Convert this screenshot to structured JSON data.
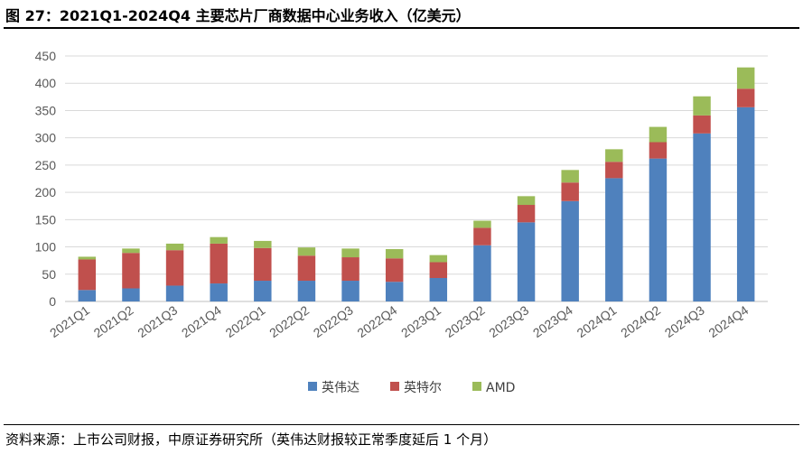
{
  "title": "图 27：2021Q1-2024Q4 主要芯片厂商数据中心业务收入（亿美元）",
  "source": "资料来源：上市公司财报，中原证券研究所（英伟达财报较正常季度延后 1 个月）",
  "colors": {
    "nvidia": "#4F81BD",
    "intel": "#C0504D",
    "amd": "#9BBB59",
    "grid": "#D9D9D9",
    "axis": "#BFBFBF"
  },
  "chart_data": {
    "type": "bar",
    "stacked": true,
    "title": "图 27：2021Q1-2024Q4 主要芯片厂商数据中心业务收入（亿美元）",
    "xlabel": "",
    "ylabel": "",
    "ylim": [
      0,
      450
    ],
    "yticks": [
      0,
      50,
      100,
      150,
      200,
      250,
      300,
      350,
      400,
      450
    ],
    "grid": true,
    "legend_position": "bottom",
    "categories": [
      "2021Q1",
      "2021Q2",
      "2021Q3",
      "2021Q4",
      "2022Q1",
      "2022Q2",
      "2022Q3",
      "2022Q4",
      "2023Q1",
      "2023Q2",
      "2023Q3",
      "2023Q4",
      "2024Q1",
      "2024Q2",
      "2024Q3",
      "2024Q4"
    ],
    "series": [
      {
        "name": "英伟达",
        "color": "#4F81BD",
        "values": [
          21,
          24,
          29,
          33,
          38,
          38,
          38,
          36,
          43,
          103,
          145,
          184,
          226,
          262,
          308,
          356
        ]
      },
      {
        "name": "英特尔",
        "color": "#C0504D",
        "values": [
          56,
          65,
          65,
          73,
          60,
          46,
          43,
          43,
          29,
          32,
          32,
          34,
          30,
          30,
          33,
          34
        ]
      },
      {
        "name": "AMD",
        "color": "#9BBB59",
        "values": [
          5,
          8,
          12,
          12,
          13,
          15,
          16,
          17,
          13,
          13,
          16,
          23,
          23,
          28,
          35,
          39
        ]
      }
    ]
  }
}
